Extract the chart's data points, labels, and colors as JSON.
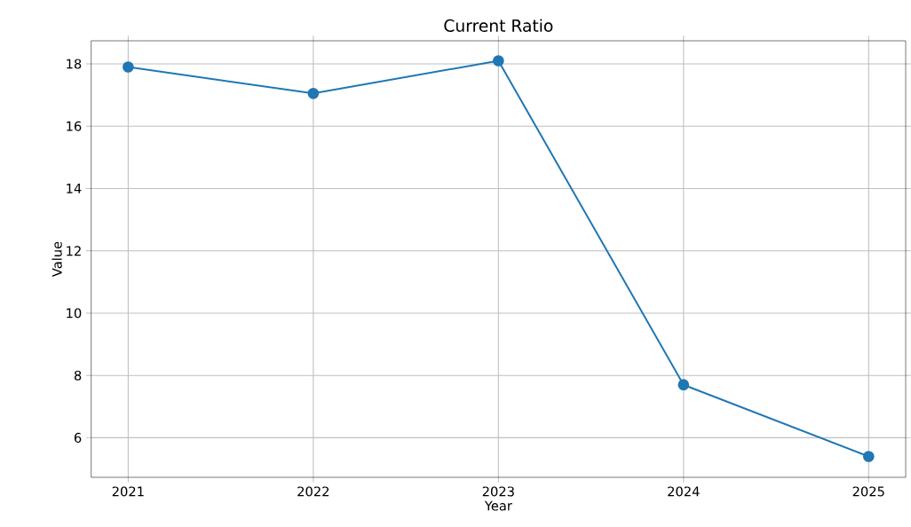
{
  "chart_data": {
    "type": "line",
    "title": "Current Ratio",
    "xlabel": "Year",
    "ylabel": "Value",
    "x": [
      2021,
      2022,
      2023,
      2024,
      2025
    ],
    "series": [
      {
        "color": "#1f77b4",
        "values": [
          17.9,
          17.05,
          18.1,
          7.7,
          5.4
        ]
      }
    ],
    "xlim": [
      2020.8,
      2025.2
    ],
    "ylim": [
      4.73,
      18.74
    ],
    "xticks": [
      2021,
      2022,
      2023,
      2024,
      2025
    ],
    "yticks": [
      6,
      8,
      10,
      12,
      14,
      16,
      18
    ],
    "grid": true,
    "marker": "circle",
    "line_style": "solid"
  }
}
